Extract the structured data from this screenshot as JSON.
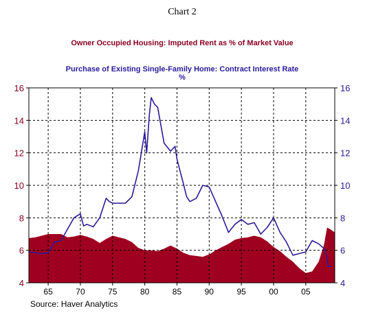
{
  "chart_data": {
    "type": "area",
    "chart_label": "Chart 2",
    "subtitle_units": "%",
    "source": "Source: Haver Analytics",
    "x_ticks": [
      "65",
      "70",
      "75",
      "80",
      "85",
      "90",
      "95",
      "00",
      "05"
    ],
    "y_ticks": [
      "4",
      "6",
      "8",
      "10",
      "12",
      "14",
      "16"
    ],
    "ylim": [
      4,
      16
    ],
    "xlim": [
      1962,
      2009.5
    ],
    "grid": "dashed",
    "colors": {
      "area": "#a00020",
      "line": "#2a1a9a",
      "axis_left": "#8b0020",
      "axis_right": "#2a1a9a"
    },
    "series": [
      {
        "name": "Owner Occupied Housing: Imputed Rent as % of Market Value",
        "kind": "area",
        "points": [
          [
            1962,
            6.75
          ],
          [
            1963,
            6.8
          ],
          [
            1964,
            6.9
          ],
          [
            1965,
            7.0
          ],
          [
            1966,
            7.0
          ],
          [
            1967,
            7.0
          ],
          [
            1968,
            6.8
          ],
          [
            1969,
            6.85
          ],
          [
            1970,
            6.95
          ],
          [
            1971,
            6.85
          ],
          [
            1972,
            6.7
          ],
          [
            1973,
            6.45
          ],
          [
            1974,
            6.7
          ],
          [
            1975,
            6.9
          ],
          [
            1976,
            6.8
          ],
          [
            1977,
            6.7
          ],
          [
            1978,
            6.5
          ],
          [
            1979,
            6.15
          ],
          [
            1980,
            6.0
          ],
          [
            1981,
            6.0
          ],
          [
            1982,
            5.95
          ],
          [
            1983,
            6.1
          ],
          [
            1984,
            6.3
          ],
          [
            1985,
            6.1
          ],
          [
            1986,
            5.85
          ],
          [
            1987,
            5.7
          ],
          [
            1988,
            5.65
          ],
          [
            1989,
            5.6
          ],
          [
            1990,
            5.75
          ],
          [
            1991,
            6.0
          ],
          [
            1992,
            6.2
          ],
          [
            1993,
            6.4
          ],
          [
            1994,
            6.65
          ],
          [
            1995,
            6.75
          ],
          [
            1996,
            6.8
          ],
          [
            1997,
            6.9
          ],
          [
            1998,
            6.8
          ],
          [
            1999,
            6.55
          ],
          [
            2000,
            6.2
          ],
          [
            2001,
            5.95
          ],
          [
            2002,
            5.6
          ],
          [
            2003,
            5.3
          ],
          [
            2004,
            4.9
          ],
          [
            2005,
            4.6
          ],
          [
            2006,
            4.7
          ],
          [
            2007,
            5.3
          ],
          [
            2007.8,
            6.3
          ],
          [
            2008.3,
            7.4
          ],
          [
            2008.8,
            7.3
          ],
          [
            2009.5,
            7.1
          ]
        ]
      },
      {
        "name": "Purchase of Existing Single-Family Home: Contract Interest Rate",
        "kind": "line",
        "points": [
          [
            1962,
            5.9
          ],
          [
            1963,
            5.85
          ],
          [
            1964,
            5.8
          ],
          [
            1965,
            5.85
          ],
          [
            1966,
            6.5
          ],
          [
            1967,
            6.6
          ],
          [
            1968,
            7.3
          ],
          [
            1969,
            8.0
          ],
          [
            1970,
            8.25
          ],
          [
            1970.5,
            7.5
          ],
          [
            1971,
            7.6
          ],
          [
            1972,
            7.45
          ],
          [
            1973,
            8.0
          ],
          [
            1974,
            9.2
          ],
          [
            1974.5,
            9.0
          ],
          [
            1975,
            8.9
          ],
          [
            1976,
            8.9
          ],
          [
            1977,
            8.9
          ],
          [
            1978,
            9.3
          ],
          [
            1979,
            10.9
          ],
          [
            1980,
            13.3
          ],
          [
            1980.3,
            12.0
          ],
          [
            1980.7,
            14.3
          ],
          [
            1981,
            15.4
          ],
          [
            1981.5,
            15.0
          ],
          [
            1982,
            14.8
          ],
          [
            1983,
            12.6
          ],
          [
            1984,
            12.1
          ],
          [
            1984.7,
            12.4
          ],
          [
            1985,
            11.6
          ],
          [
            1986,
            10.1
          ],
          [
            1986.5,
            9.3
          ],
          [
            1987,
            9.0
          ],
          [
            1988,
            9.2
          ],
          [
            1989,
            10.0
          ],
          [
            1990,
            9.9
          ],
          [
            1991,
            9.0
          ],
          [
            1992,
            8.1
          ],
          [
            1993,
            7.1
          ],
          [
            1994,
            7.6
          ],
          [
            1995,
            7.9
          ],
          [
            1996,
            7.6
          ],
          [
            1997,
            7.7
          ],
          [
            1998,
            7.0
          ],
          [
            1999,
            7.4
          ],
          [
            2000,
            8.0
          ],
          [
            2001,
            7.1
          ],
          [
            2002,
            6.5
          ],
          [
            2003,
            5.7
          ],
          [
            2004,
            5.8
          ],
          [
            2005,
            5.9
          ],
          [
            2006,
            6.6
          ],
          [
            2007,
            6.4
          ],
          [
            2008,
            6.05
          ],
          [
            2008.5,
            5.0
          ],
          [
            2009,
            5.0
          ]
        ]
      }
    ]
  }
}
